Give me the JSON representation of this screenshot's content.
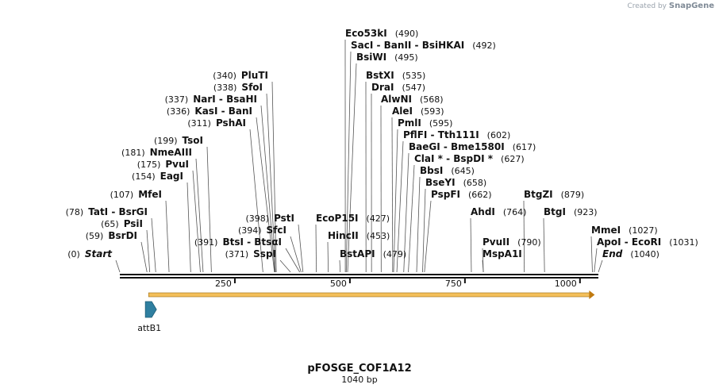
{
  "watermark": {
    "prefix": "Created by",
    "brand": "SnapGene"
  },
  "map": {
    "title": "pFOSGE_COF1A12",
    "subtitle": "1040 bp",
    "length_bp": 1040,
    "ticks": [
      {
        "bp": 250,
        "label": "250"
      },
      {
        "bp": 500,
        "label": "500"
      },
      {
        "bp": 750,
        "label": "750"
      },
      {
        "bp": 1000,
        "label": "1000"
      }
    ],
    "features": [
      {
        "name": "attB1",
        "start_bp": 71,
        "end_bp": 95,
        "color": "#2f7fa0"
      }
    ],
    "orf": {
      "start_bp": 66,
      "end_bp": 1032,
      "color": "#f3bf5a"
    },
    "sites": [
      {
        "id": "s0",
        "text": "Start",
        "pos": "(0)",
        "bp": 0,
        "side": "left",
        "italic": true
      },
      {
        "id": "s1",
        "text": "BsrDI",
        "pos": "(59)",
        "bp": 59,
        "side": "left"
      },
      {
        "id": "s2",
        "text": "PsiI",
        "pos": "(65)",
        "bp": 65,
        "side": "left"
      },
      {
        "id": "s3",
        "text": "TatI  -  BsrGI",
        "pos": "(78)",
        "bp": 78,
        "side": "left"
      },
      {
        "id": "s4",
        "text": "MfeI",
        "pos": "(107)",
        "bp": 107,
        "side": "left"
      },
      {
        "id": "s5",
        "text": "EagI",
        "pos": "(154)",
        "bp": 154,
        "side": "left"
      },
      {
        "id": "s6",
        "text": "PvuI",
        "pos": "(175)",
        "bp": 175,
        "side": "left"
      },
      {
        "id": "s7",
        "text": "NmeAIII",
        "pos": "(181)",
        "bp": 181,
        "side": "left"
      },
      {
        "id": "s8",
        "text": "TsoI",
        "pos": "(199)",
        "bp": 199,
        "side": "left"
      },
      {
        "id": "s9",
        "text": "PshAI",
        "pos": "(311)",
        "bp": 311,
        "side": "left"
      },
      {
        "id": "s10",
        "text": "KasI  -  BanI",
        "pos": "(336)",
        "bp": 336,
        "side": "left"
      },
      {
        "id": "s11",
        "text": "NarI  -  BsaHI",
        "pos": "(337)",
        "bp": 337,
        "side": "left"
      },
      {
        "id": "s12",
        "text": "SfoI",
        "pos": "(338)",
        "bp": 338,
        "side": "left"
      },
      {
        "id": "s13",
        "text": "PluTI",
        "pos": "(340)",
        "bp": 340,
        "side": "left"
      },
      {
        "id": "s14",
        "text": "SspI",
        "pos": "(371)",
        "bp": 371,
        "side": "left"
      },
      {
        "id": "s15",
        "text": "BtsI  -  BtsαI",
        "pos": "(391)",
        "bp": 391,
        "side": "left"
      },
      {
        "id": "s16",
        "text": "SfcI",
        "pos": "(394)",
        "bp": 394,
        "side": "left"
      },
      {
        "id": "s17",
        "text": "PstI",
        "pos": "(398)",
        "bp": 398,
        "side": "left"
      },
      {
        "id": "s18",
        "text": "EcoP15I",
        "pos": "(427)",
        "bp": 427,
        "side": "right"
      },
      {
        "id": "s19",
        "text": "HincII",
        "pos": "(453)",
        "bp": 453,
        "side": "right"
      },
      {
        "id": "s20",
        "text": "BstAPI",
        "pos": "(479)",
        "bp": 479,
        "side": "right"
      },
      {
        "id": "s21",
        "text": "Eco53kI",
        "pos": "(490)",
        "bp": 490,
        "side": "right"
      },
      {
        "id": "s22",
        "text": "SacI  -  BanII  -  BsiHKAI",
        "pos": "(492)",
        "bp": 492,
        "side": "right"
      },
      {
        "id": "s23",
        "text": "BsiWI",
        "pos": "(495)",
        "bp": 495,
        "side": "right"
      },
      {
        "id": "s24",
        "text": "BstXI",
        "pos": "(535)",
        "bp": 535,
        "side": "right"
      },
      {
        "id": "s25",
        "text": "DraI",
        "pos": "(547)",
        "bp": 547,
        "side": "right"
      },
      {
        "id": "s26",
        "text": "AlwNI",
        "pos": "(568)",
        "bp": 568,
        "side": "right"
      },
      {
        "id": "s27",
        "text": "AleI",
        "pos": "(593)",
        "bp": 593,
        "side": "right"
      },
      {
        "id": "s28",
        "text": "PmlI",
        "pos": "(595)",
        "bp": 595,
        "side": "right"
      },
      {
        "id": "s29",
        "text": "PflFI  -  Tth111I",
        "pos": "(602)",
        "bp": 602,
        "side": "right"
      },
      {
        "id": "s30",
        "text": "BaeGI  -  Bme1580I",
        "pos": "(617)",
        "bp": 617,
        "side": "right"
      },
      {
        "id": "s31",
        "text": "ClaI *  -  BspDI *",
        "pos": "(627)",
        "bp": 627,
        "side": "right"
      },
      {
        "id": "s32",
        "text": "BbsI",
        "pos": "(645)",
        "bp": 645,
        "side": "right"
      },
      {
        "id": "s33",
        "text": "BseYI",
        "pos": "(658)",
        "bp": 658,
        "side": "right"
      },
      {
        "id": "s34",
        "text": "PspFI",
        "pos": "(662)",
        "bp": 662,
        "side": "right"
      },
      {
        "id": "s35",
        "text": "AhdI",
        "pos": "(764)",
        "bp": 764,
        "side": "right"
      },
      {
        "id": "s36",
        "text": "PvuII",
        "pos": "(790)",
        "bp": 790,
        "side": "right"
      },
      {
        "id": "s37",
        "text": "MspA1I",
        "pos": "",
        "bp": 790,
        "side": "right"
      },
      {
        "id": "s38",
        "text": "BtgZI",
        "pos": "(879)",
        "bp": 879,
        "side": "right"
      },
      {
        "id": "s39",
        "text": "BtgI",
        "pos": "(923)",
        "bp": 923,
        "side": "right"
      },
      {
        "id": "s40",
        "text": "MmeI",
        "pos": "(1027)",
        "bp": 1027,
        "side": "right"
      },
      {
        "id": "s41",
        "text": "ApoI  -  EcoRI",
        "pos": "(1031)",
        "bp": 1031,
        "side": "right"
      },
      {
        "id": "s42",
        "text": "End",
        "pos": "(1040)",
        "bp": 1040,
        "side": "right",
        "italic": true
      }
    ]
  }
}
